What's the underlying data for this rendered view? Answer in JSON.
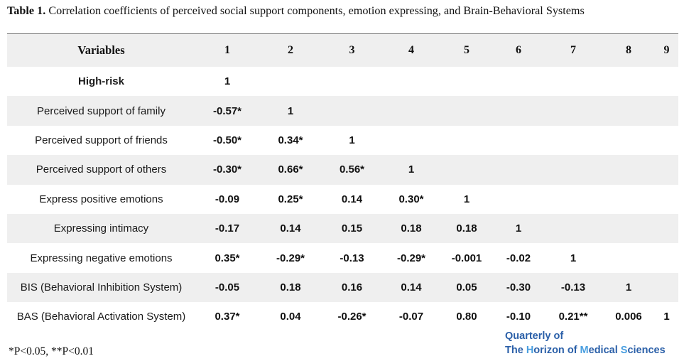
{
  "caption": {
    "label": "Table 1.",
    "text": " Correlation coefficients of perceived social support components, emotion expressing, and Brain-Behavioral Systems"
  },
  "table": {
    "headers": [
      "Variables",
      "1",
      "2",
      "3",
      "4",
      "5",
      "6",
      "7",
      "8",
      "9"
    ],
    "rows": [
      {
        "label": "High-risk",
        "cells": [
          "1",
          "",
          "",
          "",
          "",
          "",
          "",
          "",
          ""
        ]
      },
      {
        "label": "Perceived support of family",
        "cells": [
          "-0.57*",
          "1",
          "",
          "",
          "",
          "",
          "",
          "",
          ""
        ]
      },
      {
        "label": "Perceived support of friends",
        "cells": [
          "-0.50*",
          "0.34*",
          "1",
          "",
          "",
          "",
          "",
          "",
          ""
        ]
      },
      {
        "label": "Perceived support of others",
        "cells": [
          "-0.30*",
          "0.66*",
          "0.56*",
          "1",
          "",
          "",
          "",
          "",
          ""
        ]
      },
      {
        "label": "Express positive emotions",
        "cells": [
          "-0.09",
          "0.25*",
          "0.14",
          "0.30*",
          "1",
          "",
          "",
          "",
          ""
        ]
      },
      {
        "label": "Expressing intimacy",
        "cells": [
          "-0.17",
          "0.14",
          "0.15",
          "0.18",
          "0.18",
          "1",
          "",
          "",
          ""
        ]
      },
      {
        "label": "Expressing negative emotions",
        "cells": [
          "0.35*",
          "-0.29*",
          "-0.13",
          "-0.29*",
          "-0.001",
          "-0.02",
          "1",
          "",
          ""
        ]
      },
      {
        "label": "BIS (Behavioral Inhibition System)",
        "cells": [
          "-0.05",
          "0.18",
          "0.16",
          "0.14",
          "0.05",
          "-0.30",
          "-0.13",
          "1",
          ""
        ]
      },
      {
        "label": "BAS (Behavioral Activation System)",
        "cells": [
          "0.37*",
          "0.04",
          "-0.26*",
          "-0.07",
          "0.80",
          "-0.10",
          "0.21**",
          "0.006",
          "1"
        ]
      }
    ]
  },
  "footnote": "*P<0.05, **P<0.01",
  "brand": {
    "line1": "Quarterly of",
    "line2_the": "The ",
    "line2_h": "H",
    "line2_orizon": "orizon of ",
    "line2_m": "M",
    "line2_edical": "edical ",
    "line2_s": "S",
    "line2_ciences": "ciences"
  },
  "colors": {
    "row_shade": "#efefef",
    "brand_blue": "#2a5fa8",
    "brand_light": "#4a9fe0"
  }
}
